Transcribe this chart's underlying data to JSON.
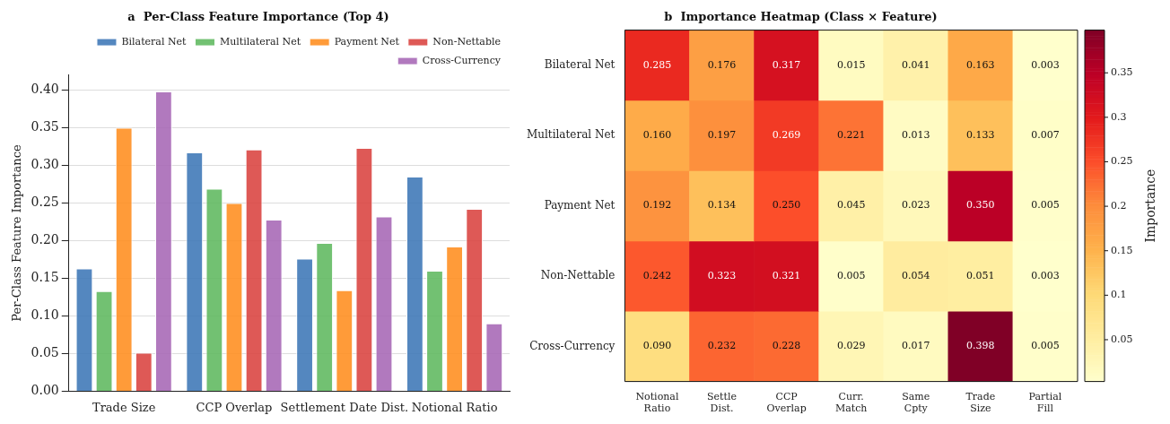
{
  "chart_data": [
    {
      "type": "bar",
      "title": "a  Per-Class Feature Importance (Top 4)",
      "ylabel": "Per-Class Feature Importance",
      "categories": [
        "Trade Size",
        "CCP Overlap",
        "Settlement Date Dist.",
        "Notional Ratio"
      ],
      "series": [
        {
          "name": "Bilateral Net",
          "color": "#3a75b5",
          "values": [
            0.163,
            0.317,
            0.176,
            0.285
          ]
        },
        {
          "name": "Multilateral Net",
          "color": "#5cb85c",
          "values": [
            0.133,
            0.269,
            0.197,
            0.16
          ]
        },
        {
          "name": "Payment Net",
          "color": "#ff8c1a",
          "values": [
            0.35,
            0.25,
            0.134,
            0.192
          ]
        },
        {
          "name": "Non-Nettable",
          "color": "#d9403c",
          "values": [
            0.051,
            0.321,
            0.323,
            0.242
          ]
        },
        {
          "name": "Cross-Currency",
          "color": "#a564b4",
          "values": [
            0.398,
            0.228,
            0.232,
            0.09
          ]
        }
      ],
      "ylim": [
        0,
        0.42
      ],
      "yticks": [
        {
          "value": 0,
          "label": "0.00"
        },
        {
          "value": 0.05,
          "label": "0.05"
        },
        {
          "value": 0.1,
          "label": "0.10"
        },
        {
          "value": 0.15,
          "label": "0.15"
        },
        {
          "value": 0.2,
          "label": "0.20"
        },
        {
          "value": 0.25,
          "label": "0.25"
        },
        {
          "value": 0.3,
          "label": "0.30"
        },
        {
          "value": 0.35,
          "label": "0.35"
        },
        {
          "value": 0.4,
          "label": "0.40"
        }
      ],
      "grid": "y",
      "legend": "top right"
    },
    {
      "type": "heatmap",
      "title": "b  Importance Heatmap (Class × Feature)",
      "clabel": "Importance",
      "categories": [
        "Notional Ratio",
        "Settle Dist.",
        "CCP Overlap",
        "Curr. Match",
        "Same Cpty",
        "Trade Size",
        "Partial Fill"
      ],
      "y_categories": [
        "Bilateral Net",
        "Multilateral Net",
        "Payment Net",
        "Non-Nettable",
        "Cross-Currency"
      ],
      "cells": [
        [
          0.285,
          0.176,
          0.317,
          0.015,
          0.041,
          0.163,
          0.003
        ],
        [
          0.16,
          0.197,
          0.269,
          0.221,
          0.013,
          0.133,
          0.007
        ],
        [
          0.192,
          0.134,
          0.25,
          0.045,
          0.023,
          0.35,
          0.005
        ],
        [
          0.242,
          0.323,
          0.321,
          0.005,
          0.054,
          0.051,
          0.003
        ],
        [
          0.09,
          0.232,
          0.228,
          0.029,
          0.017,
          0.398,
          0.005
        ]
      ],
      "cell_labels": [
        [
          "0.285",
          "0.176",
          "0.317",
          "0.015",
          "0.041",
          "0.163",
          "0.003"
        ],
        [
          "0.160",
          "0.197",
          "0.269",
          "0.221",
          "0.013",
          "0.133",
          "0.007"
        ],
        [
          "0.192",
          "0.134",
          "0.250",
          "0.045",
          "0.023",
          "0.350",
          "0.005"
        ],
        [
          "0.242",
          "0.323",
          "0.321",
          "0.005",
          "0.054",
          "0.051",
          "0.003"
        ],
        [
          "0.090",
          "0.232",
          "0.228",
          "0.029",
          "0.017",
          "0.398",
          "0.005"
        ]
      ],
      "clim": [
        0.003,
        0.398
      ],
      "cticks": [
        0.05,
        0.1,
        0.15,
        0.2,
        0.25,
        0.3,
        0.35
      ]
    }
  ]
}
